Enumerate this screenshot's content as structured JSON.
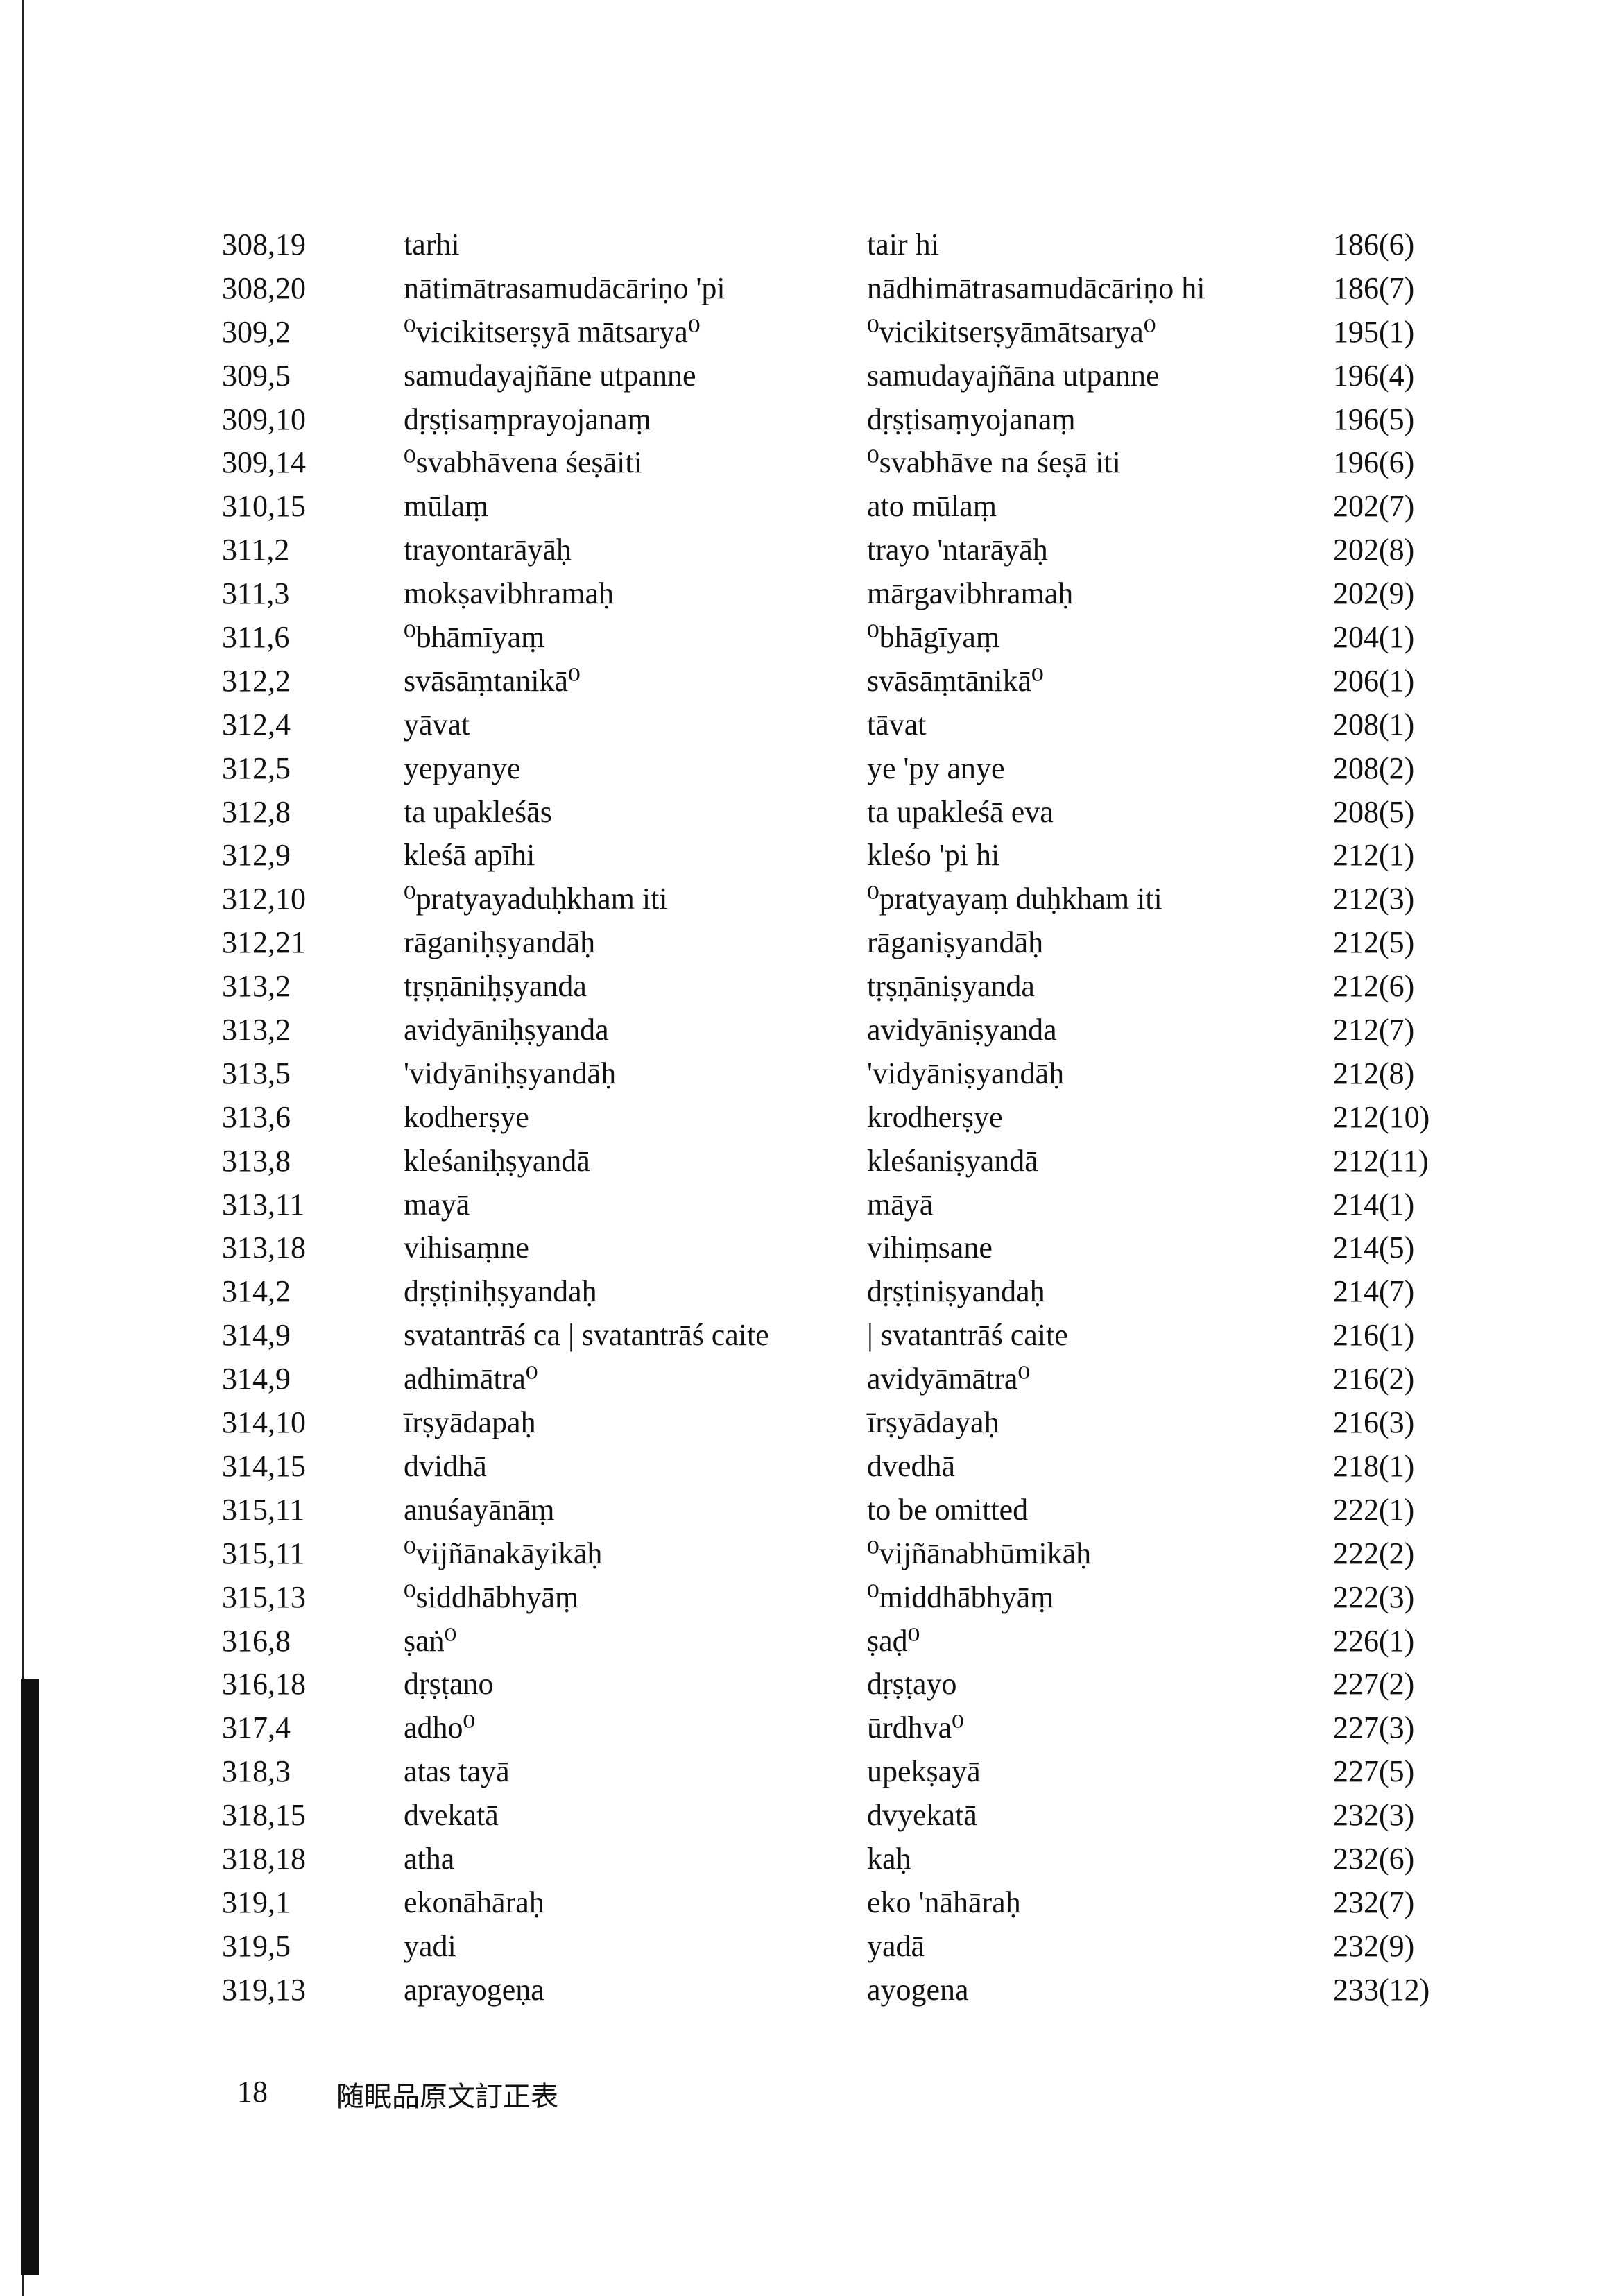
{
  "rows": [
    [
      "308,19",
      "tarhi",
      "tair hi",
      "186(6)"
    ],
    [
      "308,20",
      "nātimātrasamudācāriṇo 'pi",
      "nādhimātrasamudācāriṇo hi",
      "186(7)"
    ],
    [
      "309,2",
      "⁰vicikitserṣyā mātsarya⁰",
      "⁰vicikitserṣyāmātsarya⁰",
      "195(1)"
    ],
    [
      "309,5",
      "samudayajñāne utpanne",
      "samudayajñāna utpanne",
      "196(4)"
    ],
    [
      "309,10",
      "dṛṣṭisaṃprayojanaṃ",
      "dṛṣṭisaṃyojanaṃ",
      "196(5)"
    ],
    [
      "309,14",
      "⁰svabhāvena śeṣāiti",
      "⁰svabhāve na śeṣā iti",
      "196(6)"
    ],
    [
      "310,15",
      "mūlaṃ",
      "ato mūlaṃ",
      "202(7)"
    ],
    [
      "311,2",
      "trayontarāyāḥ",
      "trayo 'ntarāyāḥ",
      "202(8)"
    ],
    [
      "311,3",
      "mokṣavibhramaḥ",
      "mārgavibhramaḥ",
      "202(9)"
    ],
    [
      "311,6",
      "⁰bhāmīyaṃ",
      "⁰bhāgīyaṃ",
      "204(1)"
    ],
    [
      "312,2",
      "svāsāṃtanikā⁰",
      "svāsāṃtānikā⁰",
      "206(1)"
    ],
    [
      "312,4",
      "yāvat",
      "tāvat",
      "208(1)"
    ],
    [
      "312,5",
      "yepyanye",
      "ye 'py anye",
      "208(2)"
    ],
    [
      "312,8",
      "ta upakleśās",
      "ta upakleśā eva",
      "208(5)"
    ],
    [
      "312,9",
      "kleśā apīhi",
      "kleśo 'pi hi",
      "212(1)"
    ],
    [
      "312,10",
      "⁰pratyayaduḥkham iti",
      "⁰pratyayaṃ duḥkham iti",
      "212(3)"
    ],
    [
      "312,21",
      "rāganiḥṣyandāḥ",
      "rāganiṣyandāḥ",
      "212(5)"
    ],
    [
      "313,2",
      "tṛṣṇāniḥṣyanda",
      "tṛṣṇāniṣyanda",
      "212(6)"
    ],
    [
      "313,2",
      "avidyāniḥṣyanda",
      "avidyāniṣyanda",
      "212(7)"
    ],
    [
      "313,5",
      "'vidyāniḥṣyandāḥ",
      "'vidyāniṣyandāḥ",
      "212(8)"
    ],
    [
      "313,6",
      "kodherṣye",
      "krodherṣye",
      "212(10)"
    ],
    [
      "313,8",
      "kleśaniḥṣyandā",
      "kleśaniṣyandā",
      "212(11)"
    ],
    [
      "313,11",
      "mayā",
      "māyā",
      "214(1)"
    ],
    [
      "313,18",
      "vihisaṃne",
      "vihiṃsane",
      "214(5)"
    ],
    [
      "314,2",
      "dṛṣṭiniḥṣyandaḥ",
      "dṛṣṭiniṣyandaḥ",
      "214(7)"
    ],
    [
      "314,9",
      "svatantrāś ca | svatantrāś caite",
      "| svatantrāś caite",
      "216(1)"
    ],
    [
      "314,9",
      "adhimātra⁰",
      "avidyāmātra⁰",
      "216(2)"
    ],
    [
      "314,10",
      "īrṣyādapaḥ",
      "īrṣyādayaḥ",
      "216(3)"
    ],
    [
      "314,15",
      "dvidhā",
      "dvedhā",
      "218(1)"
    ],
    [
      "315,11",
      "anuśayānāṃ",
      "to be omitted",
      "222(1)"
    ],
    [
      "315,11",
      "⁰vijñānakāyikāḥ",
      "⁰vijñānabhūmikāḥ",
      "222(2)"
    ],
    [
      "315,13",
      "⁰siddhābhyāṃ",
      "⁰middhābhyāṃ",
      "222(3)"
    ],
    [
      "316,8",
      "ṣaṅ⁰",
      "ṣaḍ⁰",
      "226(1)"
    ],
    [
      "316,18",
      "dṛṣṭano",
      "dṛṣṭayo",
      "227(2)"
    ],
    [
      "317,4",
      "adho⁰",
      "ūrdhva⁰",
      "227(3)"
    ],
    [
      "318,3",
      "atas tayā",
      "upekṣayā",
      "227(5)"
    ],
    [
      "318,15",
      "dvekatā",
      "dvyekatā",
      "232(3)"
    ],
    [
      "318,18",
      "atha",
      "kaḥ",
      "232(6)"
    ],
    [
      "319,1",
      "ekonāhāraḥ",
      "eko 'nāhāraḥ",
      "232(7)"
    ],
    [
      "319,5",
      "yadi",
      "yadā",
      "232(9)"
    ],
    [
      "319,13",
      "aprayogeṇa",
      "ayogena",
      "233(12)"
    ]
  ],
  "footer": {
    "page_number": "18",
    "title": "随眠品原文訂正表"
  }
}
